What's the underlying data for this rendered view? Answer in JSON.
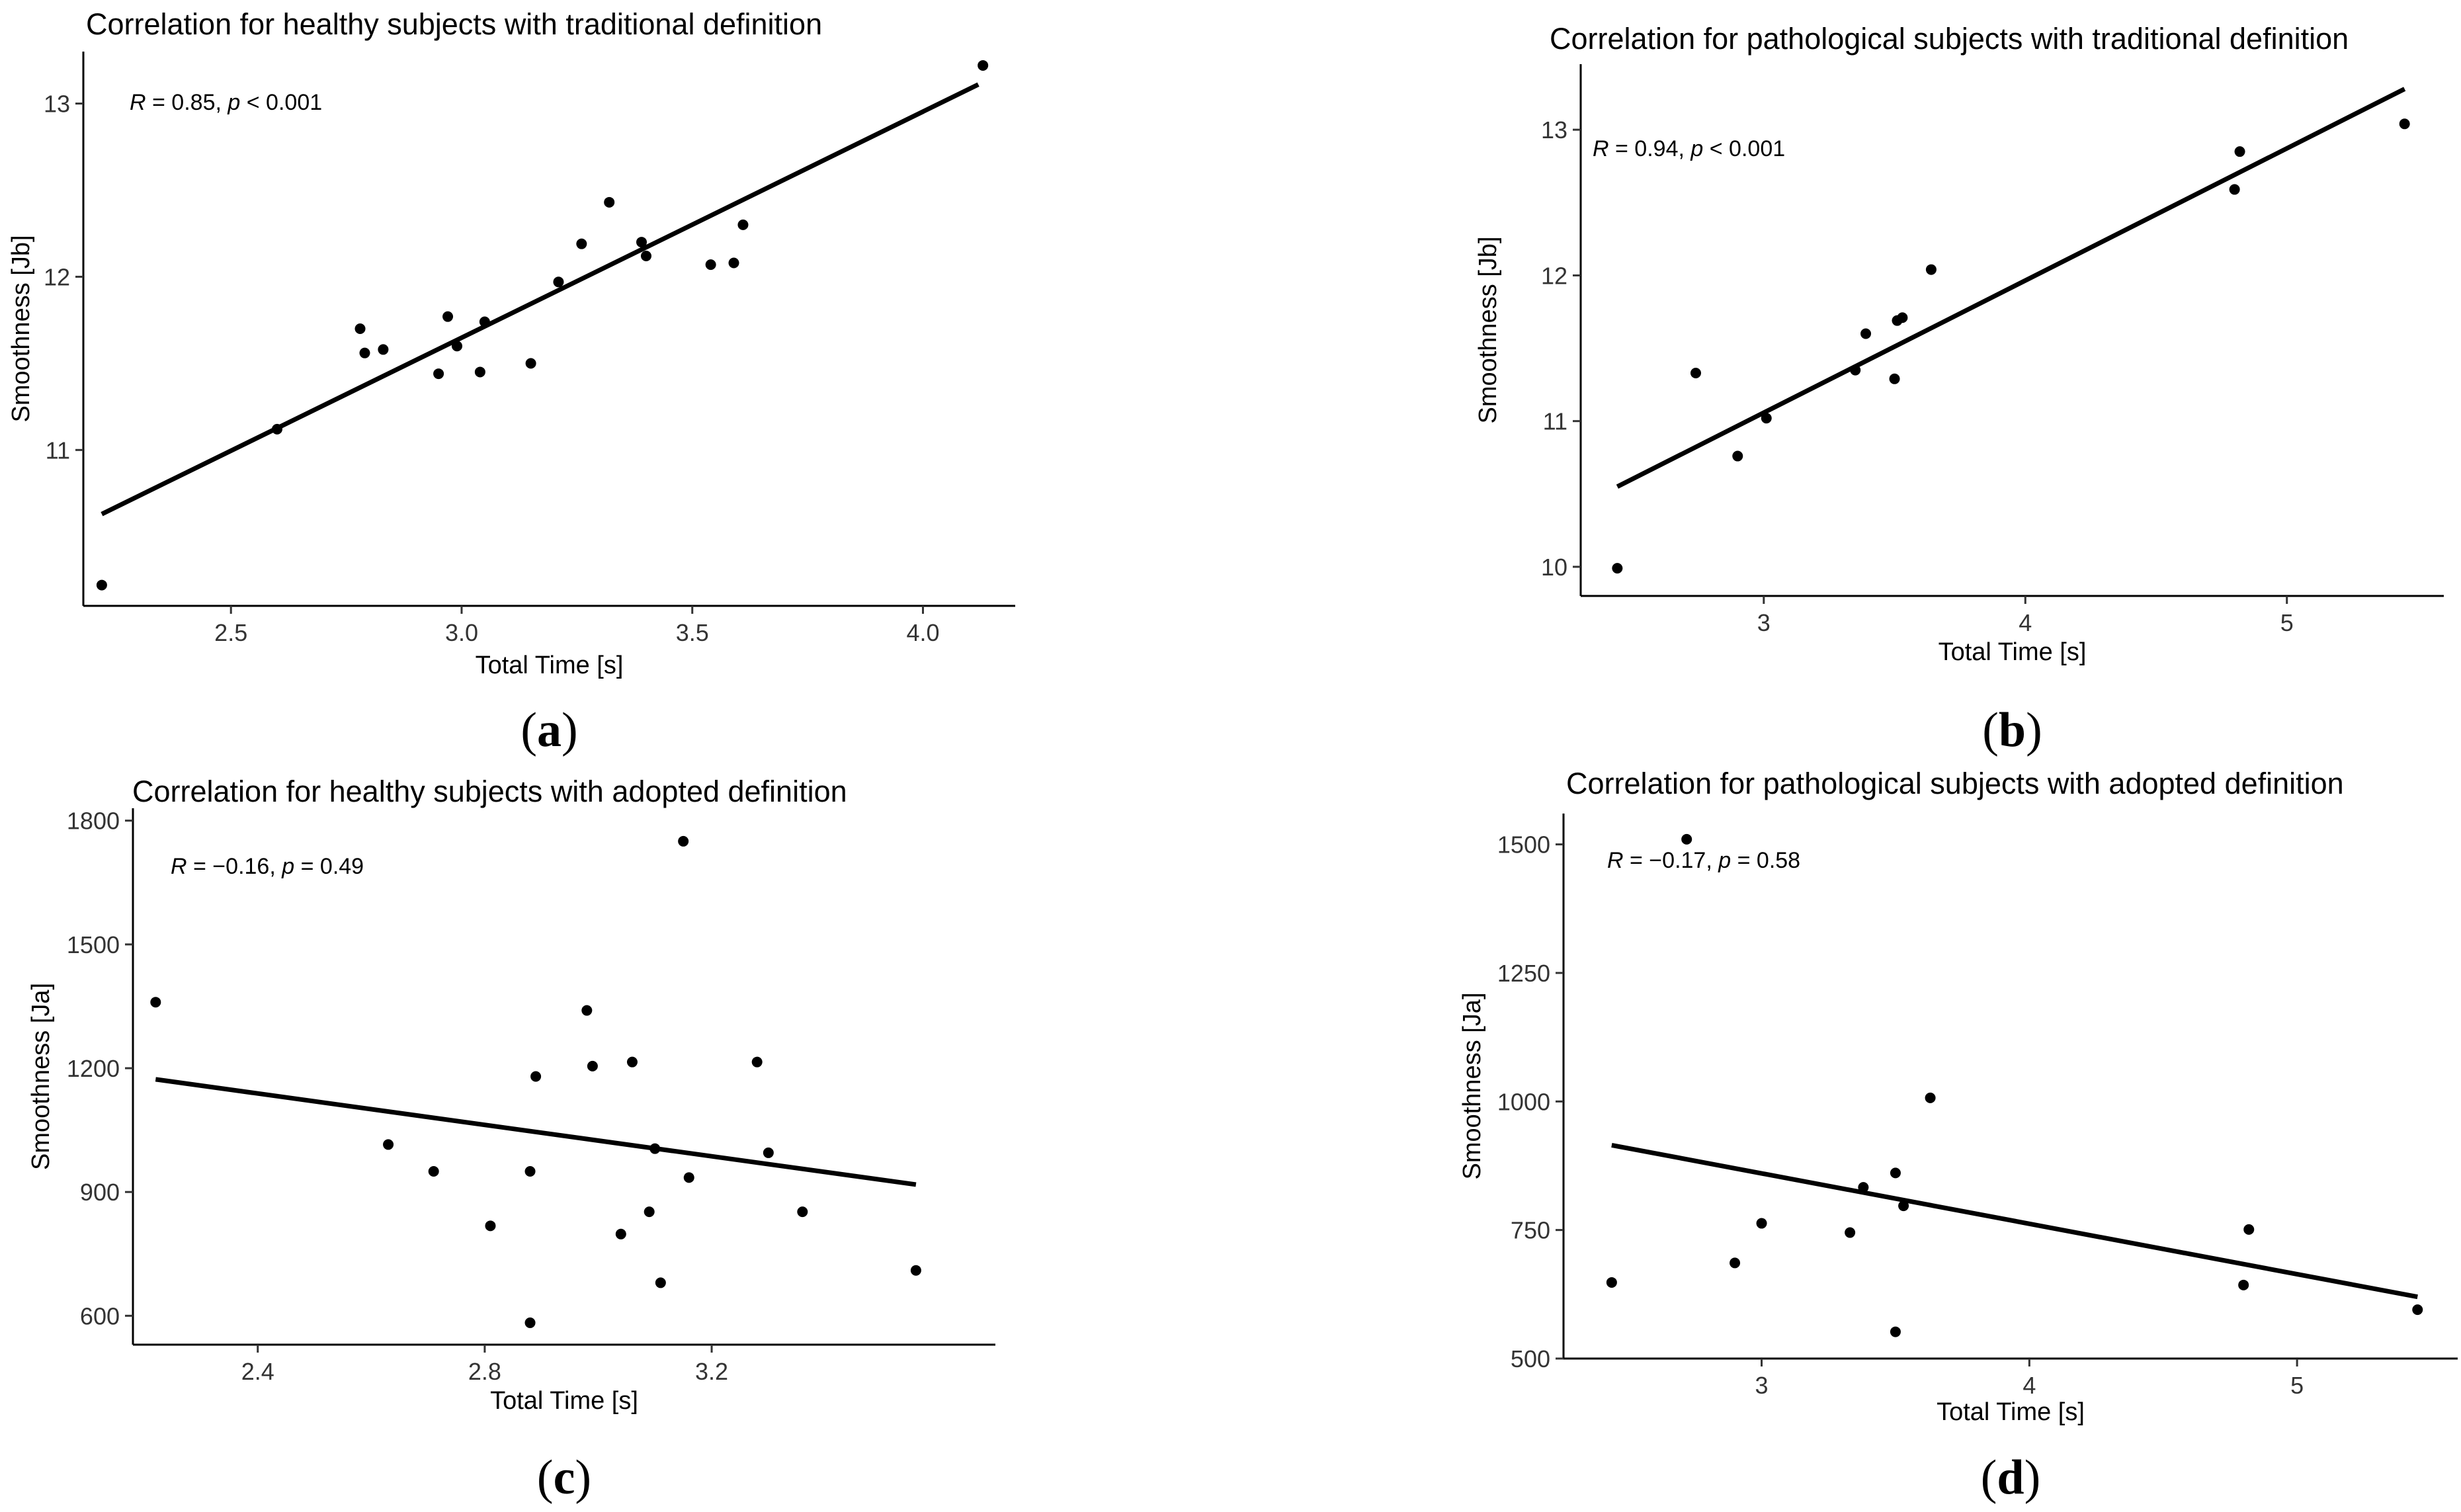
{
  "chart_data": [
    {
      "id": "a",
      "type": "scatter",
      "title": "Correlation for healthy subjects with traditional definition",
      "caption": "(a)",
      "caption_letter": "a",
      "xlabel": "Total Time [s]",
      "ylabel": "Smoothness [Jb]",
      "stat_R": "0.85",
      "stat_p_op": "<",
      "stat_p": "0.001",
      "xlim": [
        2.18,
        4.2
      ],
      "ylim": [
        10.1,
        13.3
      ],
      "xticks": [
        2.5,
        3.0,
        3.5,
        4.0
      ],
      "xtick_labels": [
        "2.5",
        "3.0",
        "3.5",
        "4.0"
      ],
      "yticks": [
        11,
        12,
        13
      ],
      "ytick_labels": [
        "11",
        "12",
        "13"
      ],
      "x": [
        2.22,
        2.6,
        2.78,
        2.79,
        2.83,
        2.95,
        2.97,
        2.99,
        3.04,
        3.05,
        3.15,
        3.21,
        3.26,
        3.32,
        3.39,
        3.4,
        3.54,
        3.59,
        3.61,
        4.13
      ],
      "y": [
        10.22,
        11.12,
        11.7,
        11.56,
        11.58,
        11.44,
        11.77,
        11.6,
        11.45,
        11.74,
        11.5,
        11.97,
        12.19,
        12.43,
        12.2,
        12.12,
        12.07,
        12.08,
        12.3,
        13.22
      ],
      "fit": {
        "x": [
          2.22,
          4.12
        ],
        "y": [
          10.63,
          13.11
        ]
      },
      "grid": false,
      "legend": "none"
    },
    {
      "id": "b",
      "type": "scatter",
      "title": "Correlation for pathological subjects with traditional definition",
      "caption": "(b)",
      "caption_letter": "b",
      "xlabel": "Total Time [s]",
      "ylabel": "Smoothness [Jb]",
      "stat_R": "0.94",
      "stat_p_op": "<",
      "stat_p": "0.001",
      "xlim": [
        2.3,
        5.6
      ],
      "ylim": [
        9.8,
        13.45
      ],
      "xticks": [
        3,
        4,
        5
      ],
      "xtick_labels": [
        "3",
        "4",
        "5"
      ],
      "yticks": [
        10,
        11,
        12,
        13
      ],
      "ytick_labels": [
        "10",
        "11",
        "12",
        "13"
      ],
      "x": [
        2.44,
        2.74,
        2.9,
        3.01,
        3.35,
        3.39,
        3.5,
        3.51,
        3.53,
        3.64,
        4.8,
        4.82,
        5.45
      ],
      "y": [
        9.99,
        11.33,
        10.76,
        11.02,
        11.35,
        11.6,
        11.29,
        11.69,
        11.71,
        12.04,
        12.59,
        12.85,
        13.04
      ],
      "fit": {
        "x": [
          2.44,
          5.45
        ],
        "y": [
          10.55,
          13.28
        ]
      },
      "grid": false,
      "legend": "none"
    },
    {
      "id": "c",
      "type": "scatter",
      "title": "Correlation for healthy subjects with adopted definition",
      "caption": "(c)",
      "caption_letter": "c",
      "xlabel": "Total Time [s]",
      "ylabel": "Smoothness [Ja]",
      "stat_R": "−0.16",
      "stat_p_op": "=",
      "stat_p": "0.49",
      "xlim": [
        2.18,
        3.7
      ],
      "ylim": [
        530,
        1830
      ],
      "xticks": [
        2.4,
        2.8,
        3.2
      ],
      "xtick_labels": [
        "2.4",
        "2.8",
        "3.2"
      ],
      "yticks": [
        600,
        900,
        1200,
        1500,
        1800
      ],
      "ytick_labels": [
        "600",
        "900",
        "1200",
        "1500",
        "1800"
      ],
      "x": [
        2.22,
        2.63,
        2.71,
        2.81,
        2.88,
        2.88,
        2.89,
        2.98,
        2.99,
        3.04,
        3.06,
        3.09,
        3.1,
        3.11,
        3.15,
        3.16,
        3.28,
        3.3,
        3.36,
        3.56
      ],
      "y": [
        1360,
        1015,
        950,
        818,
        583,
        950,
        1180,
        1340,
        1205,
        798,
        1215,
        852,
        1005,
        680,
        1750,
        935,
        1215,
        995,
        852,
        710
      ],
      "fit": {
        "x": [
          2.22,
          3.56
        ],
        "y": [
          1173,
          918
        ]
      },
      "grid": false,
      "legend": "none"
    },
    {
      "id": "d",
      "type": "scatter",
      "title": "Correlation for pathological subjects with adopted definition",
      "caption": "(d)",
      "caption_letter": "d",
      "xlabel": "Total Time [s]",
      "ylabel": "Smoothness [Ja]",
      "stat_R": "−0.17",
      "stat_p_op": "=",
      "stat_p": "0.58",
      "xlim": [
        2.26,
        5.6
      ],
      "ylim": [
        500,
        1560
      ],
      "xticks": [
        3,
        4,
        5
      ],
      "xtick_labels": [
        "3",
        "4",
        "5"
      ],
      "yticks": [
        500,
        750,
        1000,
        1250,
        1500
      ],
      "ytick_labels": [
        "500",
        "750",
        "1000",
        "1250",
        "1500"
      ],
      "x": [
        2.44,
        2.72,
        2.9,
        3.0,
        3.33,
        3.38,
        3.5,
        3.5,
        3.53,
        3.63,
        4.8,
        4.82,
        5.45
      ],
      "y": [
        648,
        1510,
        686,
        763,
        745,
        833,
        552,
        861,
        797,
        1007,
        643,
        751,
        595
      ],
      "fit": {
        "x": [
          2.44,
          5.45
        ],
        "y": [
          915,
          620
        ]
      },
      "grid": false,
      "legend": "none"
    }
  ]
}
